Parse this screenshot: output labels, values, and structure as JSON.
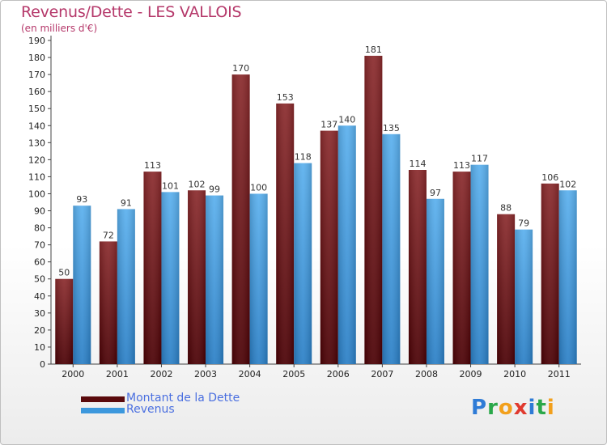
{
  "title": "Revenus/Dette - LES VALLOIS",
  "subtitle": "(en milliers d'€)",
  "logo": {
    "letters": [
      {
        "char": "P",
        "color": "#2e7bd6"
      },
      {
        "char": "r",
        "color": "#2aa84a"
      },
      {
        "char": "o",
        "color": "#f2a01c"
      },
      {
        "char": "x",
        "color": "#e03a2f"
      },
      {
        "char": "i",
        "color": "#2e7bd6"
      },
      {
        "char": "t",
        "color": "#2aa84a"
      },
      {
        "char": "i",
        "color": "#f2a01c"
      }
    ]
  },
  "legend": [
    {
      "label": "Montant de la Dette",
      "color": "#6b0f10"
    },
    {
      "label": "Revenus",
      "color": "#3c98dd"
    }
  ],
  "chart_data": {
    "type": "bar",
    "title": "Revenus/Dette - LES VALLOIS",
    "subtitle": "(en milliers d'€)",
    "categories": [
      "2000",
      "2001",
      "2002",
      "2003",
      "2004",
      "2005",
      "2006",
      "2007",
      "2008",
      "2009",
      "2010",
      "2011"
    ],
    "series": [
      {
        "name": "Montant de la Dette",
        "color": "#7a1a1c",
        "values": [
          50,
          72,
          113,
          102,
          170,
          153,
          137,
          181,
          114,
          113,
          88,
          106
        ]
      },
      {
        "name": "Revenus",
        "color": "#4aa3e6",
        "values": [
          93,
          91,
          101,
          99,
          100,
          118,
          140,
          135,
          97,
          117,
          79,
          102
        ]
      }
    ],
    "ylim": [
      0,
      190
    ],
    "ytick_step": 10,
    "grid": false,
    "legend_position": "bottom-left",
    "data_labels": true
  }
}
